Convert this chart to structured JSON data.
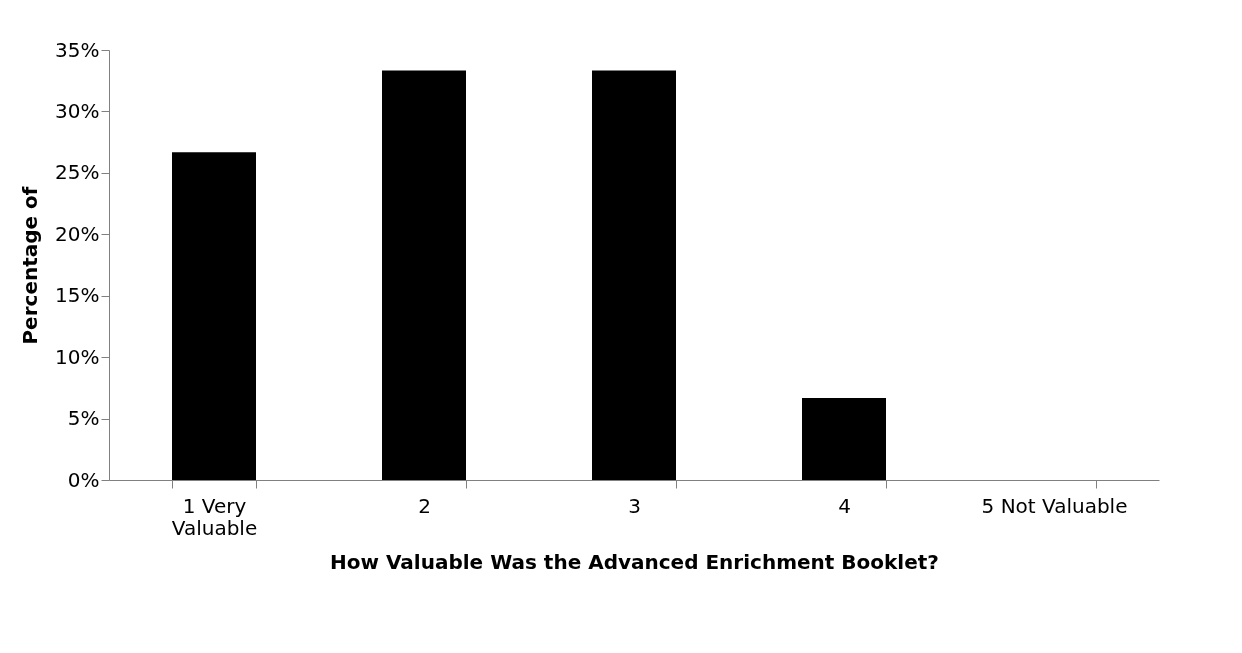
{
  "chart_data": {
    "type": "bar",
    "categories": [
      "1 Very\nValuable",
      "2",
      "3",
      "4",
      "5 Not Valuable"
    ],
    "values": [
      26.67,
      33.33,
      33.33,
      6.67,
      0
    ],
    "color": "#000000",
    "xlabel": "How Valuable Was the Advanced Enrichment Booklet?",
    "ylabel": "Percentage of",
    "ylim": [
      0,
      35
    ],
    "yticks": [
      {
        "value": 0,
        "label": "0%"
      },
      {
        "value": 5,
        "label": "5%"
      },
      {
        "value": 10,
        "label": "10%"
      },
      {
        "value": 15,
        "label": "15%"
      },
      {
        "value": 20,
        "label": "20%"
      },
      {
        "value": 25,
        "label": "25%"
      },
      {
        "value": 30,
        "label": "30%"
      },
      {
        "value": 35,
        "label": "35%"
      }
    ],
    "grid": false
  }
}
